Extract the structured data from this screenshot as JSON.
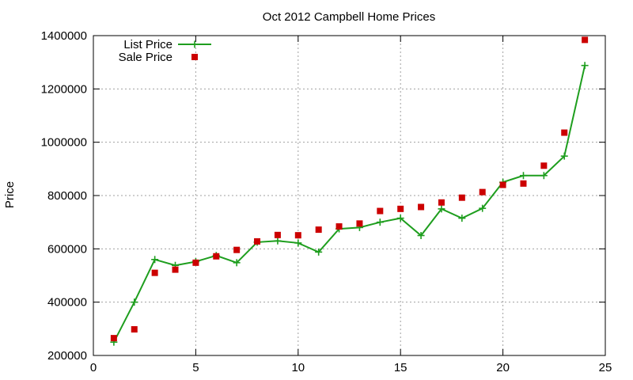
{
  "chart_data": {
    "type": "line",
    "title": "Oct 2012 Campbell Home Prices",
    "xlabel": "",
    "ylabel": "Price",
    "xlim": [
      0,
      25
    ],
    "ylim": [
      200000,
      1400000
    ],
    "x_ticks": [
      0,
      5,
      10,
      15,
      20,
      25
    ],
    "y_ticks": [
      200000,
      400000,
      600000,
      800000,
      1000000,
      1200000,
      1400000
    ],
    "grid": true,
    "legend_position": "top-left",
    "series": [
      {
        "name": "List Price",
        "style": "line with plus markers",
        "color": "#1e9e1e",
        "x": [
          1,
          2,
          3,
          4,
          5,
          6,
          7,
          8,
          9,
          10,
          11,
          12,
          13,
          14,
          15,
          16,
          17,
          18,
          19,
          20,
          21,
          22,
          23,
          24
        ],
        "y": [
          250000,
          400000,
          560000,
          538000,
          552000,
          575000,
          548000,
          625000,
          630000,
          622000,
          588000,
          675000,
          680000,
          700000,
          715000,
          650000,
          750000,
          715000,
          752000,
          850000,
          875000,
          875000,
          948000,
          1288000
        ]
      },
      {
        "name": "Sale Price",
        "style": "square markers",
        "color": "#cc0000",
        "x": [
          1,
          2,
          3,
          4,
          5,
          6,
          7,
          8,
          9,
          10,
          11,
          12,
          13,
          14,
          15,
          16,
          17,
          18,
          19,
          20,
          21,
          22,
          23,
          24
        ],
        "y": [
          265000,
          298000,
          510000,
          522000,
          548000,
          572000,
          596000,
          628000,
          652000,
          651000,
          672000,
          684000,
          695000,
          742000,
          750000,
          757000,
          774000,
          792000,
          813000,
          840000,
          845000,
          912000,
          1036000,
          1384000
        ]
      }
    ]
  }
}
